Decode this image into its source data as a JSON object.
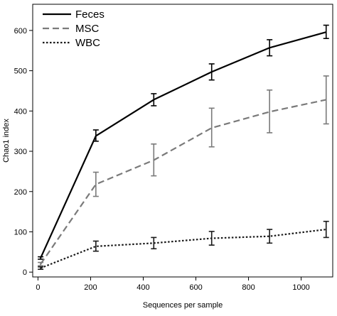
{
  "chart_data": {
    "type": "line",
    "title": "",
    "xlabel": "Sequences per sample",
    "ylabel": "Chao1 index",
    "xlim": [
      -20,
      1120
    ],
    "ylim": [
      -12,
      665
    ],
    "xticks": [
      0,
      200,
      400,
      600,
      800,
      1000
    ],
    "yticks": [
      0,
      100,
      200,
      300,
      400,
      500,
      600
    ],
    "grid": false,
    "legend_position": "top-left",
    "x": [
      10,
      220,
      440,
      660,
      880,
      1095
    ],
    "series": [
      {
        "name": "Feces",
        "style": "solid",
        "color": "#000000",
        "values": [
          35,
          338,
          428,
          497,
          557,
          596
        ],
        "err_low": [
          32,
          325,
          413,
          477,
          537,
          580
        ],
        "err_high": [
          38,
          353,
          443,
          517,
          577,
          613
        ]
      },
      {
        "name": "MSC",
        "style": "dashed",
        "color": "#7a7a7a",
        "values": [
          20,
          218,
          278,
          358,
          398,
          428
        ],
        "err_low": [
          16,
          188,
          239,
          311,
          346,
          368
        ],
        "err_high": [
          24,
          248,
          318,
          407,
          452,
          487
        ]
      },
      {
        "name": "WBC",
        "style": "dotted",
        "color": "#1a1a1a",
        "values": [
          10,
          64,
          72,
          84,
          89,
          106
        ],
        "err_low": [
          7,
          52,
          58,
          67,
          72,
          86
        ],
        "err_high": [
          13,
          77,
          86,
          101,
          106,
          126
        ]
      }
    ]
  }
}
